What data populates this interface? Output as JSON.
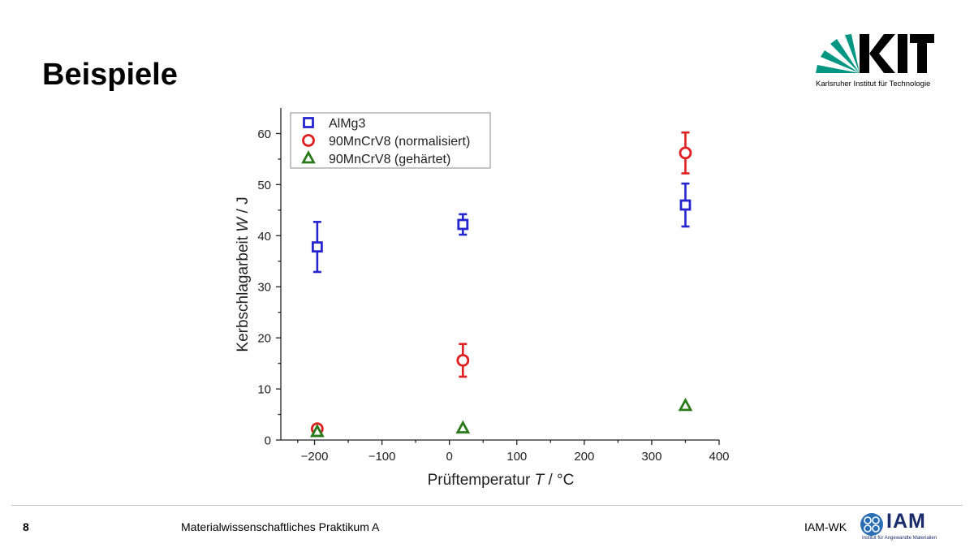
{
  "slide": {
    "title": "Beispiele",
    "logo_text": "KIT",
    "logo_subtitle": "Karlsruher Institut für Technologie"
  },
  "footer": {
    "page_number": "8",
    "center_text": "Materialwissenschaftliches Praktikum A",
    "right_text": "IAM-WK",
    "logo_text": "IAM",
    "logo_subtitle": "Institut für Angewandte Materialien"
  },
  "chart_data": {
    "type": "scatter",
    "xlabel_parts": [
      "Prüftemperatur ",
      "T",
      " / °C"
    ],
    "ylabel_parts": [
      "Kerbschlagarbeit ",
      "W",
      " / J"
    ],
    "xlim": [
      -250,
      400
    ],
    "ylim": [
      0,
      65
    ],
    "x_ticks": [
      -200,
      -100,
      0,
      100,
      200,
      300,
      400
    ],
    "x_tick_labels": [
      "−200",
      "−100",
      "0",
      "100",
      "200",
      "300",
      "400"
    ],
    "y_ticks": [
      0,
      10,
      20,
      30,
      40,
      50,
      60
    ],
    "y_tick_labels": [
      "0",
      "10",
      "20",
      "30",
      "40",
      "50",
      "60"
    ],
    "grid": false,
    "legend_position": "top-left",
    "series": [
      {
        "name": "AlMg3",
        "marker": "square",
        "color": "#2626d0",
        "points": [
          {
            "x": -196,
            "y": 37.8,
            "err": 4.9
          },
          {
            "x": 20,
            "y": 42.2,
            "err": 2.0
          },
          {
            "x": 350,
            "y": 46.0,
            "err": 4.2
          }
        ]
      },
      {
        "name": "90MnCrV8 (normalisiert)",
        "marker": "circle",
        "color": "#e02020",
        "points": [
          {
            "x": -196,
            "y": 2.2,
            "err": 0
          },
          {
            "x": 20,
            "y": 15.6,
            "err": 3.2
          },
          {
            "x": 350,
            "y": 56.2,
            "err": 4.0
          }
        ]
      },
      {
        "name": "90MnCrV8 (gehärtet)",
        "marker": "triangle",
        "color": "#2a7a1a",
        "points": [
          {
            "x": -196,
            "y": 1.6,
            "err": 0
          },
          {
            "x": 20,
            "y": 2.3,
            "err": 0
          },
          {
            "x": 350,
            "y": 6.7,
            "err": 0
          }
        ]
      }
    ]
  }
}
